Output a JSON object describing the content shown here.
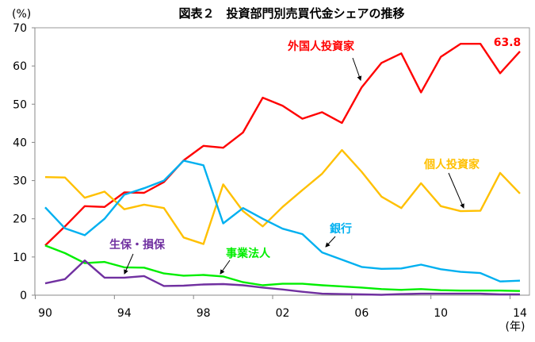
{
  "chart_data": {
    "type": "line",
    "title": "図表２　投資部門別売買代金シェアの推移",
    "ylabel": "(%)",
    "xlabel": "(年)",
    "ylim": [
      0,
      70
    ],
    "yticks": [
      0,
      10,
      20,
      30,
      40,
      50,
      60,
      70
    ],
    "x": [
      1990,
      1991,
      1992,
      1993,
      1994,
      1995,
      1996,
      1997,
      1998,
      1999,
      2000,
      2001,
      2002,
      2003,
      2004,
      2005,
      2006,
      2007,
      2008,
      2009,
      2010,
      2011,
      2012,
      2013,
      2014
    ],
    "xtick_labels": [
      {
        "year": 1990,
        "label": "90"
      },
      {
        "year": 1994,
        "label": "94"
      },
      {
        "year": 1998,
        "label": "98"
      },
      {
        "year": 2002,
        "label": "02"
      },
      {
        "year": 2006,
        "label": "06"
      },
      {
        "year": 2010,
        "label": "10"
      },
      {
        "year": 2014,
        "label": "14"
      }
    ],
    "grid": false,
    "series": [
      {
        "name": "外国人投資家",
        "color": "#ff0000",
        "values": [
          13.0,
          18.0,
          23.3,
          23.1,
          26.9,
          26.8,
          29.6,
          35.3,
          39.1,
          38.6,
          42.6,
          51.7,
          49.6,
          46.2,
          47.9,
          45.1,
          54.4,
          60.8,
          63.3,
          53.1,
          62.4,
          65.8,
          65.8,
          58.1,
          63.8
        ]
      },
      {
        "name": "個人投資家",
        "color": "#ffc000",
        "values": [
          30.9,
          30.8,
          25.5,
          27.1,
          22.5,
          23.7,
          22.8,
          15.1,
          13.4,
          29.0,
          22.0,
          18.0,
          23.1,
          27.5,
          31.8,
          38.0,
          32.3,
          25.8,
          22.8,
          29.3,
          23.3,
          22.0,
          22.1,
          32.0,
          26.6
        ]
      },
      {
        "name": "銀行",
        "color": "#00b0f0",
        "values": [
          23.0,
          17.5,
          15.7,
          20.0,
          26.3,
          28.0,
          30.0,
          35.2,
          34.0,
          18.8,
          22.8,
          20.0,
          17.4,
          16.0,
          11.2,
          9.3,
          7.4,
          6.9,
          7.0,
          8.0,
          6.8,
          6.1,
          5.8,
          3.6,
          3.8
        ]
      },
      {
        "name": "事業法人",
        "color": "#00ee00",
        "values": [
          13.0,
          11.0,
          8.4,
          8.7,
          7.3,
          7.2,
          5.7,
          5.1,
          5.3,
          4.9,
          3.4,
          2.6,
          3.0,
          3.0,
          2.6,
          2.3,
          2.0,
          1.6,
          1.4,
          1.6,
          1.3,
          1.2,
          1.2,
          1.2,
          1.1
        ]
      },
      {
        "name": "生保・損保",
        "color": "#7030a0",
        "values": [
          3.1,
          4.2,
          9.1,
          4.6,
          4.6,
          5.0,
          2.4,
          2.5,
          2.8,
          2.9,
          2.6,
          2.0,
          1.5,
          0.9,
          0.4,
          0.3,
          0.2,
          0.1,
          0.3,
          0.4,
          0.4,
          0.4,
          0.4,
          0.2,
          0.2
        ]
      }
    ],
    "annotations": [
      {
        "text": "63.8",
        "color": "#ff0000"
      }
    ]
  }
}
